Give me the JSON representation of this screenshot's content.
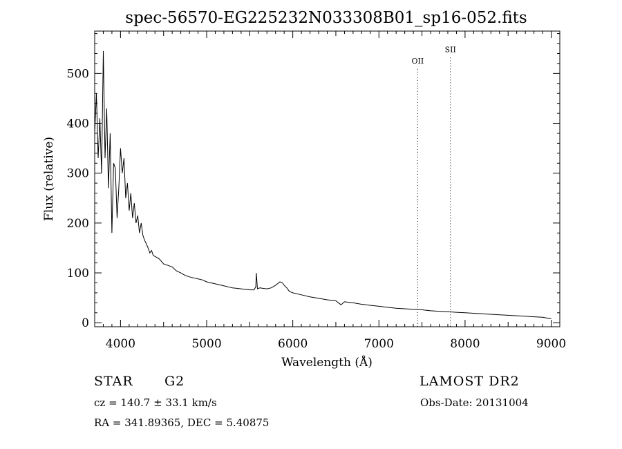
{
  "chart_data": {
    "type": "line",
    "title": "spec-56570-EG225232N033308B01_sp16-052.fits",
    "xlabel": "Wavelength (Å)",
    "ylabel": "Flux (relative)",
    "xlim": [
      3700,
      9100
    ],
    "ylim": [
      -8,
      585
    ],
    "xticks": [
      4000,
      5000,
      6000,
      7000,
      8000,
      9000
    ],
    "yticks": [
      0,
      100,
      200,
      300,
      400,
      500
    ],
    "grid": false,
    "legend": "none",
    "line_color": "#000000",
    "series": [
      {
        "x": [
          3700,
          3720,
          3740,
          3760,
          3780,
          3800,
          3820,
          3840,
          3860,
          3880,
          3900,
          3920,
          3940,
          3960,
          3980,
          4000,
          4020,
          4040,
          4060,
          4080,
          4100,
          4120,
          4140,
          4160,
          4180,
          4200,
          4220,
          4240,
          4260,
          4280,
          4300,
          4320,
          4340,
          4360,
          4380,
          4400,
          4450,
          4500,
          4550,
          4600,
          4650,
          4700,
          4750,
          4800,
          4850,
          4900,
          4950,
          5000,
          5050,
          5100,
          5150,
          5200,
          5250,
          5300,
          5350,
          5400,
          5450,
          5500,
          5550,
          5570,
          5577,
          5590,
          5620,
          5650,
          5700,
          5750,
          5800,
          5850,
          5880,
          5900,
          5930,
          5960,
          6000,
          6100,
          6200,
          6300,
          6400,
          6500,
          6560,
          6600,
          6700,
          6800,
          6900,
          7000,
          7100,
          7200,
          7300,
          7400,
          7500,
          7600,
          7700,
          7800,
          7900,
          8000,
          8100,
          8200,
          8300,
          8400,
          8500,
          8600,
          8700,
          8800,
          8900,
          9000
        ],
        "y": [
          380,
          460,
          330,
          410,
          300,
          545,
          330,
          430,
          270,
          380,
          180,
          320,
          310,
          210,
          270,
          350,
          300,
          330,
          250,
          280,
          225,
          260,
          210,
          240,
          200,
          215,
          180,
          200,
          175,
          165,
          158,
          150,
          140,
          145,
          135,
          133,
          128,
          118,
          115,
          112,
          104,
          100,
          95,
          92,
          90,
          88,
          86,
          82,
          80,
          78,
          76,
          74,
          72,
          70,
          69,
          68,
          67,
          66,
          66,
          72,
          100,
          68,
          70,
          69,
          68,
          70,
          75,
          82,
          80,
          75,
          70,
          63,
          60,
          56,
          52,
          49,
          46,
          44,
          36,
          42,
          40,
          37,
          35,
          33,
          31,
          29,
          28,
          27,
          26,
          24,
          23,
          22,
          21,
          20,
          19,
          18,
          17,
          16,
          15,
          14,
          13,
          12,
          11,
          8
        ]
      }
    ],
    "annotations": [
      {
        "label": "OII",
        "x": 7450,
        "y": 520
      },
      {
        "label": "SII",
        "x": 7830,
        "y": 543
      }
    ]
  },
  "info": {
    "class_label": "STAR",
    "subclass": "G2",
    "survey": "LAMOST DR2",
    "cz_text": "cz = 140.7 ± 33.1 km/s",
    "obs_date_text": "Obs-Date: 20131004",
    "coords_text": "RA = 341.89365, DEC =   5.40875"
  }
}
